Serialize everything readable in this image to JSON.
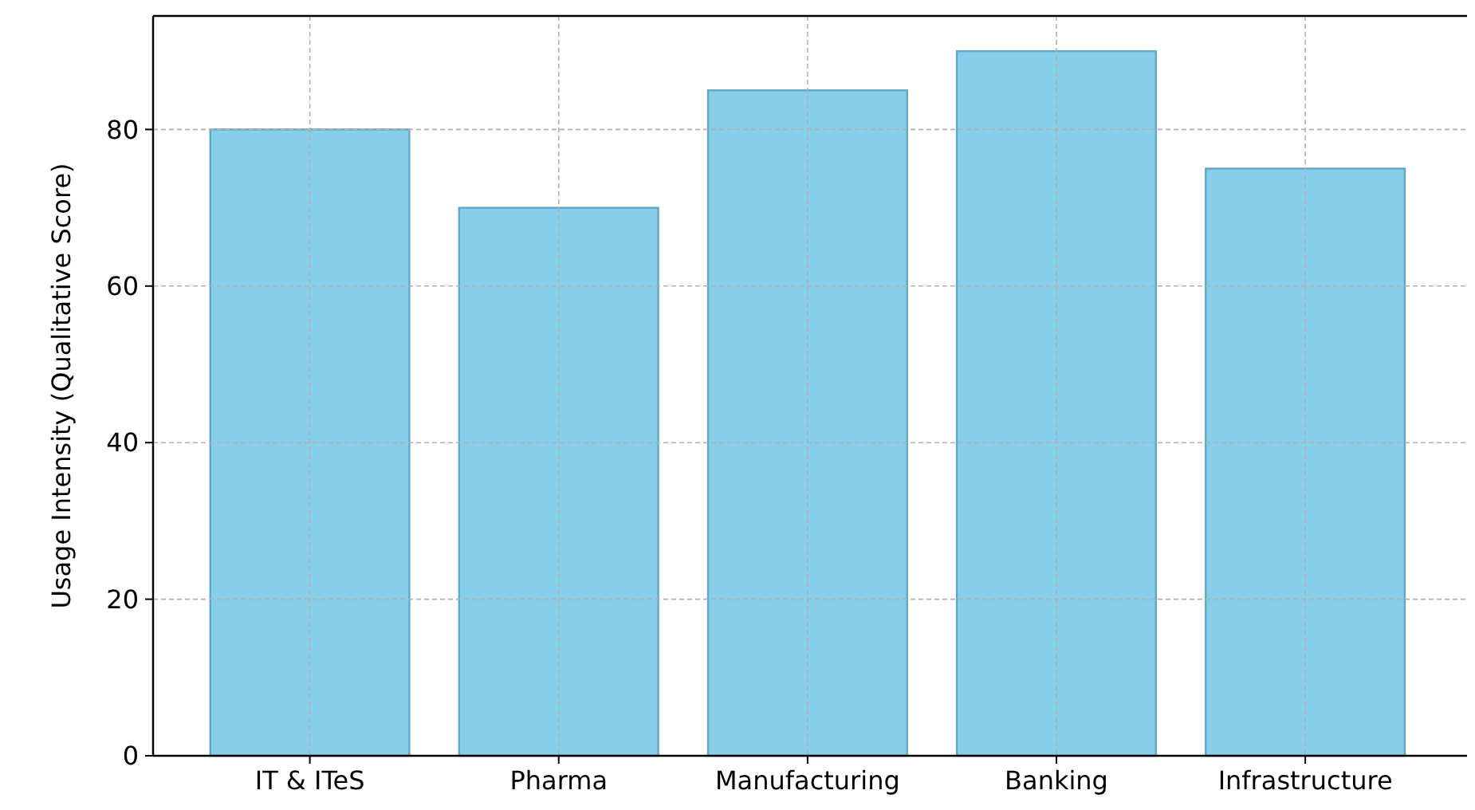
{
  "chart_data": {
    "type": "bar",
    "ylabel": "Usage Intensity (Qualitative Score)",
    "categories": [
      "IT & ITeS",
      "Pharma",
      "Manufacturing",
      "Banking",
      "Infrastructure"
    ],
    "values": [
      80,
      70,
      85,
      90,
      75
    ],
    "color": "#87ceeb",
    "ylim": [
      0,
      94.5
    ],
    "yticks": [
      0,
      20,
      40,
      60,
      80
    ],
    "grid": true
  }
}
